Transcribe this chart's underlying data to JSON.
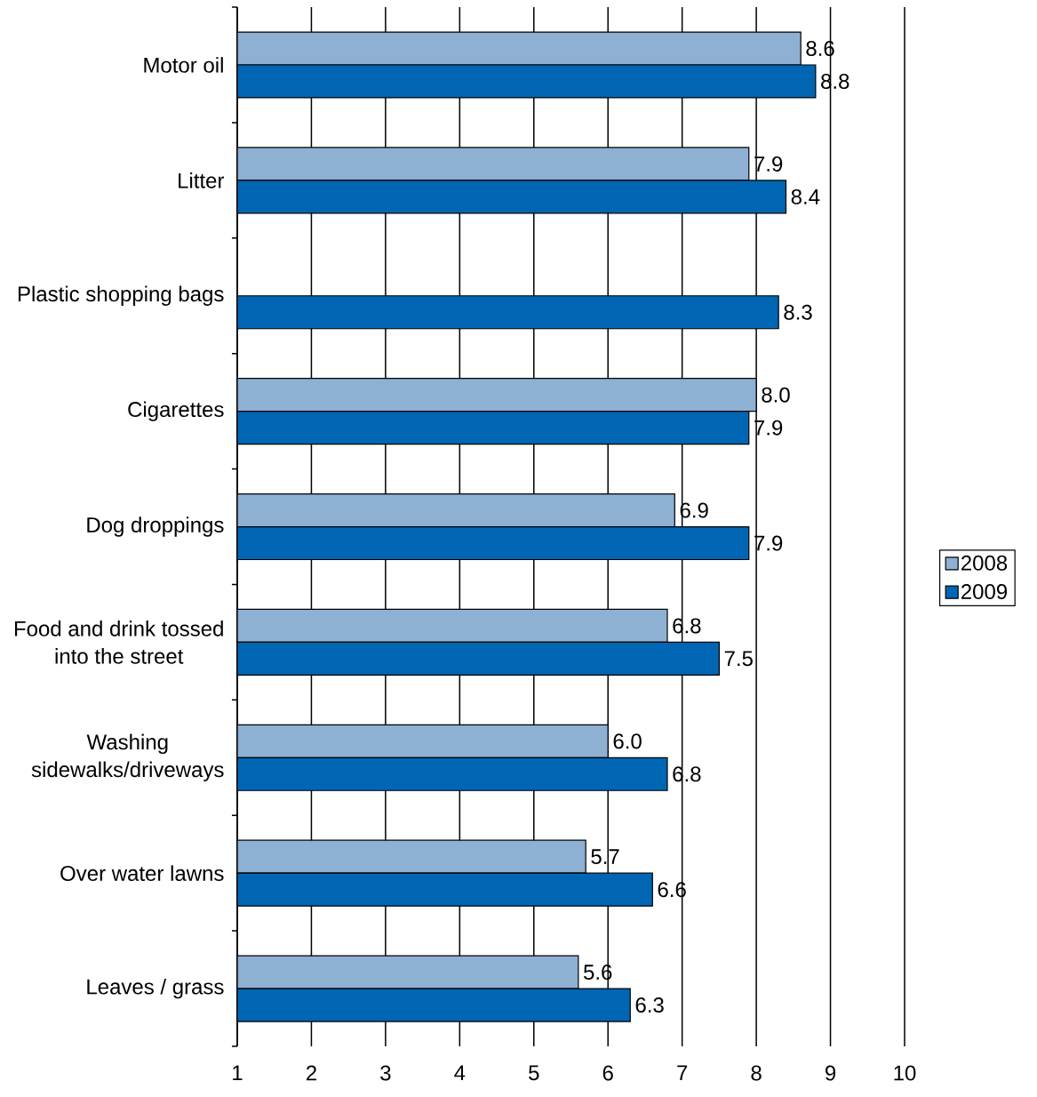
{
  "chart_data": {
    "type": "bar",
    "orientation": "horizontal",
    "categories": [
      "Motor oil",
      "Litter",
      "Plastic shopping bags",
      "Cigarettes",
      "Dog droppings",
      "Food and drink tossed into the street",
      "Washing sidewalks/driveways",
      "Over water lawns",
      "Leaves / grass"
    ],
    "series": [
      {
        "name": "2008",
        "color": "#8eb0d2",
        "values": [
          8.6,
          7.9,
          null,
          8.0,
          6.9,
          6.8,
          6.0,
          5.7,
          5.6
        ],
        "value_labels": [
          "8.6",
          "7.9",
          null,
          "8.0",
          "6.9",
          "6.8",
          "6.0",
          "5.7",
          "5.6"
        ]
      },
      {
        "name": "2009",
        "color": "#0066b3",
        "values": [
          8.8,
          8.4,
          8.3,
          7.9,
          7.9,
          7.5,
          6.8,
          6.6,
          6.3
        ],
        "value_labels": [
          "8.8",
          "8.4",
          "8.3",
          "7.9",
          "7.9",
          "7.5",
          "6.8",
          "6.6",
          "6.3"
        ]
      }
    ],
    "xlim": [
      1,
      10
    ],
    "xticks": [
      1,
      2,
      3,
      4,
      5,
      6,
      7,
      8,
      9,
      10
    ],
    "grid": "x",
    "legend": "right"
  }
}
